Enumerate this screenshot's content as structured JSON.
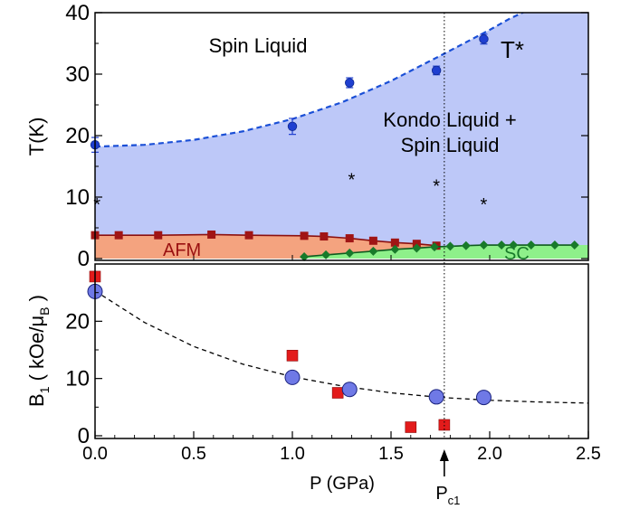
{
  "colors": {
    "kondo_fill": "#bdc8f8",
    "afm_fill": "#f4a37f",
    "sc_fill": "#8ef08a",
    "tstar_line": "#1a4fd6",
    "tstar_marker": "#1f3fd0",
    "afm_line": "#8b1010",
    "afm_marker": "#a01515",
    "sc_line": "#0e5a1e",
    "sc_marker": "#187a2a",
    "b1_circle": "#6f79e6",
    "b1_square": "#e31b1b",
    "text_dark": "#000000",
    "afm_text": "#9a1010",
    "sc_text": "#187a2a"
  },
  "chart_data": [
    {
      "type": "scatter",
      "ylabel": "T(K)",
      "ylim": [
        0,
        40
      ],
      "yticks": [
        "0",
        "10",
        "20",
        "30",
        "40"
      ],
      "xlim": [
        0,
        2.5
      ],
      "annotations": {
        "spin_liquid": "Spin Liquid",
        "kondo_line1": "Kondo Liquid +",
        "kondo_line2": "Spin Liquid",
        "tstar": "T*",
        "afm": "AFM",
        "sc": "SC"
      },
      "series": [
        {
          "kind": "tstar_points",
          "x": [
            0.0,
            1.0,
            1.29,
            1.73,
            1.97
          ],
          "y": [
            18.5,
            21.5,
            28.6,
            30.6,
            35.7
          ],
          "err": [
            1.2,
            1.3,
            0.8,
            0.7,
            0.8
          ]
        },
        {
          "kind": "tstar_fit",
          "x": [
            0.0,
            0.25,
            0.5,
            0.75,
            1.0,
            1.25,
            1.5,
            1.75,
            2.0,
            2.1,
            2.2
          ],
          "y": [
            18.2,
            18.5,
            19.3,
            20.7,
            22.7,
            25.4,
            28.9,
            33.0,
            37.2,
            39.0,
            40.5
          ]
        },
        {
          "kind": "star_points",
          "x": [
            0.01,
            1.3,
            1.73,
            1.97
          ],
          "y": [
            9.0,
            13.0,
            12.0,
            9.0
          ]
        },
        {
          "kind": "afm_points",
          "x": [
            0.0,
            0.12,
            0.32,
            0.59,
            0.78,
            1.06,
            1.16,
            1.29,
            1.41,
            1.52,
            1.63,
            1.73
          ],
          "y": [
            3.8,
            3.8,
            3.8,
            3.9,
            3.8,
            3.7,
            3.6,
            3.3,
            2.9,
            2.6,
            2.4,
            2.1
          ]
        },
        {
          "kind": "sc_points",
          "x": [
            1.06,
            1.17,
            1.29,
            1.41,
            1.52,
            1.63,
            1.72,
            1.8,
            1.88,
            1.97,
            2.06,
            2.12,
            2.21,
            2.33,
            2.43
          ],
          "y": [
            0.3,
            0.6,
            0.9,
            1.2,
            1.5,
            1.7,
            1.9,
            2.0,
            2.1,
            2.2,
            2.2,
            2.2,
            2.2,
            2.2,
            2.2
          ]
        }
      ]
    },
    {
      "type": "scatter",
      "xlabel": "P (GPa)",
      "ylabel_main": "B",
      "ylabel_sub": "1",
      "ylabel_rest": " ( kOe/μ",
      "ylabel_sub2": "B",
      "ylabel_end": " )",
      "xlim": [
        0,
        2.5
      ],
      "ylim": [
        0,
        30
      ],
      "xticks": [
        "0.0",
        "0.5",
        "1.0",
        "1.5",
        "2.0",
        "2.5"
      ],
      "yticks": [
        "0",
        "10",
        "20"
      ],
      "pc1_label": "P",
      "pc1_sub": "c1",
      "pc1_x": 1.77,
      "series": [
        {
          "kind": "circles",
          "x": [
            0.0,
            1.0,
            1.29,
            1.73,
            1.97
          ],
          "y": [
            25.2,
            10.2,
            8.1,
            6.8,
            6.7
          ],
          "err": [
            2.5,
            0.4,
            0.5,
            0.4,
            0.4
          ]
        },
        {
          "kind": "squares",
          "x": [
            0.0,
            1.0,
            1.23,
            1.6,
            1.77
          ],
          "y": [
            27.8,
            14.0,
            7.5,
            1.5,
            1.9
          ]
        },
        {
          "kind": "fit",
          "x": [
            0.0,
            0.25,
            0.5,
            0.75,
            1.0,
            1.25,
            1.5,
            1.75,
            2.0,
            2.25,
            2.5
          ],
          "y": [
            25.3,
            19.8,
            15.6,
            12.5,
            10.3,
            8.7,
            7.5,
            6.7,
            6.2,
            5.9,
            5.7
          ]
        }
      ]
    }
  ]
}
